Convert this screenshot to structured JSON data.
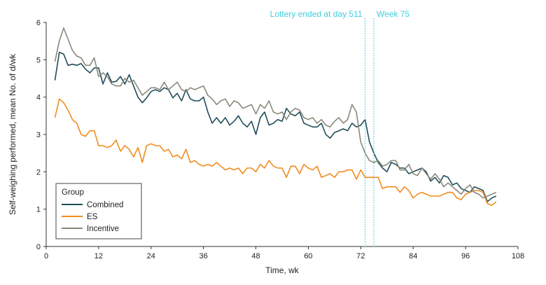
{
  "chart_data": {
    "type": "line",
    "xlabel": "Time, wk",
    "ylabel": "Self-weighing performed, mean No. of d/wk",
    "xlim": [
      0,
      108
    ],
    "ylim": [
      0,
      6
    ],
    "xticks": [
      0,
      12,
      24,
      36,
      48,
      60,
      72,
      84,
      96,
      108
    ],
    "yticks": [
      0,
      1,
      2,
      3,
      4,
      5,
      6
    ],
    "grid": false,
    "legend": {
      "title": "Group",
      "placement": "bottom-left"
    },
    "annotations": [
      {
        "text": "Lottery ended at day 511",
        "x": 73,
        "style": "dotted-vertical-line",
        "position": "left-of-line"
      },
      {
        "text": "Week 75",
        "x": 75,
        "style": "dotted-vertical-line",
        "position": "right-of-line"
      }
    ],
    "series": [
      {
        "name": "Combined",
        "color": "#1f4e5a",
        "x": [
          2,
          3,
          4,
          5,
          6,
          7,
          8,
          9,
          10,
          11,
          12,
          13,
          14,
          15,
          16,
          17,
          18,
          19,
          20,
          21,
          22,
          23,
          24,
          25,
          26,
          27,
          28,
          29,
          30,
          31,
          32,
          33,
          34,
          35,
          36,
          37,
          38,
          39,
          40,
          41,
          42,
          43,
          44,
          45,
          46,
          47,
          48,
          49,
          50,
          51,
          52,
          53,
          54,
          55,
          56,
          57,
          58,
          59,
          60,
          61,
          62,
          63,
          64,
          65,
          66,
          67,
          68,
          69,
          70,
          71,
          72,
          73,
          74,
          75,
          76,
          77,
          78,
          79,
          80,
          81,
          82,
          83,
          84,
          85,
          86,
          87,
          88,
          89,
          90,
          91,
          92,
          93,
          94,
          95,
          96,
          97,
          98,
          99,
          100,
          101,
          102,
          103
        ],
        "y": [
          4.45,
          5.2,
          5.15,
          4.85,
          4.88,
          4.85,
          4.9,
          4.75,
          4.65,
          4.78,
          4.78,
          4.35,
          4.65,
          4.4,
          4.42,
          4.55,
          4.35,
          4.6,
          4.3,
          4.0,
          3.85,
          3.98,
          4.15,
          4.2,
          4.15,
          4.25,
          4.2,
          3.98,
          4.1,
          3.9,
          4.2,
          3.95,
          3.9,
          3.9,
          4.0,
          3.6,
          3.3,
          3.45,
          3.3,
          3.45,
          3.25,
          3.35,
          3.5,
          3.3,
          3.2,
          3.35,
          3.0,
          3.45,
          3.6,
          3.25,
          3.3,
          3.4,
          3.35,
          3.7,
          3.55,
          3.5,
          3.6,
          3.3,
          3.25,
          3.2,
          3.2,
          3.3,
          3.0,
          2.9,
          3.05,
          3.1,
          3.15,
          3.1,
          3.3,
          3.2,
          3.25,
          3.4,
          2.8,
          2.5,
          2.25,
          2.1,
          2.0,
          2.25,
          2.2,
          2.1,
          2.1,
          1.95,
          2.0,
          2.05,
          2.1,
          2.0,
          1.75,
          1.85,
          1.7,
          1.9,
          1.85,
          1.65,
          1.7,
          1.55,
          1.5,
          1.45,
          1.6,
          1.55,
          1.5,
          1.2,
          1.3,
          1.35
        ]
      },
      {
        "name": "ES",
        "color": "#f08c1e",
        "x": [
          2,
          3,
          4,
          5,
          6,
          7,
          8,
          9,
          10,
          11,
          12,
          13,
          14,
          15,
          16,
          17,
          18,
          19,
          20,
          21,
          22,
          23,
          24,
          25,
          26,
          27,
          28,
          29,
          30,
          31,
          32,
          33,
          34,
          35,
          36,
          37,
          38,
          39,
          40,
          41,
          42,
          43,
          44,
          45,
          46,
          47,
          48,
          49,
          50,
          51,
          52,
          53,
          54,
          55,
          56,
          57,
          58,
          59,
          60,
          61,
          62,
          63,
          64,
          65,
          66,
          67,
          68,
          69,
          70,
          71,
          72,
          73,
          74,
          75,
          76,
          77,
          78,
          79,
          80,
          81,
          82,
          83,
          84,
          85,
          86,
          87,
          88,
          89,
          90,
          91,
          92,
          93,
          94,
          95,
          96,
          97,
          98,
          99,
          100,
          101,
          102,
          103
        ],
        "y": [
          3.45,
          3.95,
          3.85,
          3.65,
          3.4,
          3.3,
          3.0,
          2.95,
          3.1,
          3.1,
          2.7,
          2.7,
          2.65,
          2.7,
          2.85,
          2.55,
          2.7,
          2.6,
          2.4,
          2.65,
          2.25,
          2.7,
          2.75,
          2.7,
          2.7,
          2.55,
          2.6,
          2.4,
          2.45,
          2.35,
          2.6,
          2.25,
          2.3,
          2.2,
          2.15,
          2.2,
          2.15,
          2.25,
          2.15,
          2.05,
          2.1,
          2.05,
          2.1,
          1.95,
          2.1,
          2.1,
          2.0,
          2.2,
          2.1,
          2.3,
          2.15,
          2.1,
          2.1,
          1.85,
          2.15,
          2.15,
          1.95,
          2.2,
          2.1,
          2.05,
          2.15,
          1.85,
          1.9,
          1.95,
          1.85,
          2.0,
          2.0,
          2.05,
          2.05,
          1.8,
          2.05,
          1.85,
          1.85,
          1.85,
          1.85,
          1.55,
          1.6,
          1.6,
          1.6,
          1.45,
          1.6,
          1.5,
          1.3,
          1.4,
          1.45,
          1.4,
          1.35,
          1.35,
          1.35,
          1.4,
          1.45,
          1.45,
          1.3,
          1.25,
          1.4,
          1.45,
          1.5,
          1.5,
          1.45,
          1.15,
          1.1,
          1.2
        ]
      },
      {
        "name": "Incentive",
        "color": "#8a8878",
        "x": [
          2,
          3,
          4,
          5,
          6,
          7,
          8,
          9,
          10,
          11,
          12,
          13,
          14,
          15,
          16,
          17,
          18,
          19,
          20,
          21,
          22,
          23,
          24,
          25,
          26,
          27,
          28,
          29,
          30,
          31,
          32,
          33,
          34,
          35,
          36,
          37,
          38,
          39,
          40,
          41,
          42,
          43,
          44,
          45,
          46,
          47,
          48,
          49,
          50,
          51,
          52,
          53,
          54,
          55,
          56,
          57,
          58,
          59,
          60,
          61,
          62,
          63,
          64,
          65,
          66,
          67,
          68,
          69,
          70,
          71,
          72,
          73,
          74,
          75,
          76,
          77,
          78,
          79,
          80,
          81,
          82,
          83,
          84,
          85,
          86,
          87,
          88,
          89,
          90,
          91,
          92,
          93,
          94,
          95,
          96,
          97,
          98,
          99,
          100,
          101,
          102,
          103
        ],
        "y": [
          4.95,
          5.5,
          5.85,
          5.55,
          5.25,
          5.1,
          5.05,
          4.85,
          4.85,
          5.05,
          4.55,
          4.65,
          4.55,
          4.35,
          4.3,
          4.3,
          4.5,
          4.4,
          4.45,
          4.25,
          4.05,
          4.15,
          4.25,
          4.25,
          4.2,
          4.4,
          4.2,
          4.3,
          4.4,
          4.2,
          4.15,
          4.25,
          4.2,
          4.25,
          4.3,
          4.05,
          3.95,
          3.8,
          3.9,
          3.95,
          3.75,
          3.9,
          3.85,
          3.7,
          3.75,
          3.8,
          3.55,
          3.8,
          3.7,
          3.9,
          3.6,
          3.55,
          3.6,
          3.4,
          3.6,
          3.7,
          3.65,
          3.45,
          3.4,
          3.45,
          3.3,
          3.4,
          3.25,
          3.2,
          3.35,
          3.45,
          3.3,
          3.4,
          3.8,
          3.6,
          2.8,
          2.5,
          2.3,
          2.25,
          2.3,
          2.15,
          2.2,
          2.3,
          2.3,
          2.05,
          2.05,
          2.2,
          1.95,
          1.9,
          2.1,
          1.95,
          1.8,
          1.95,
          1.8,
          1.6,
          1.7,
          1.6,
          1.5,
          1.4,
          1.55,
          1.65,
          1.45,
          1.4,
          1.3,
          1.35,
          1.4,
          1.45
        ]
      }
    ]
  }
}
